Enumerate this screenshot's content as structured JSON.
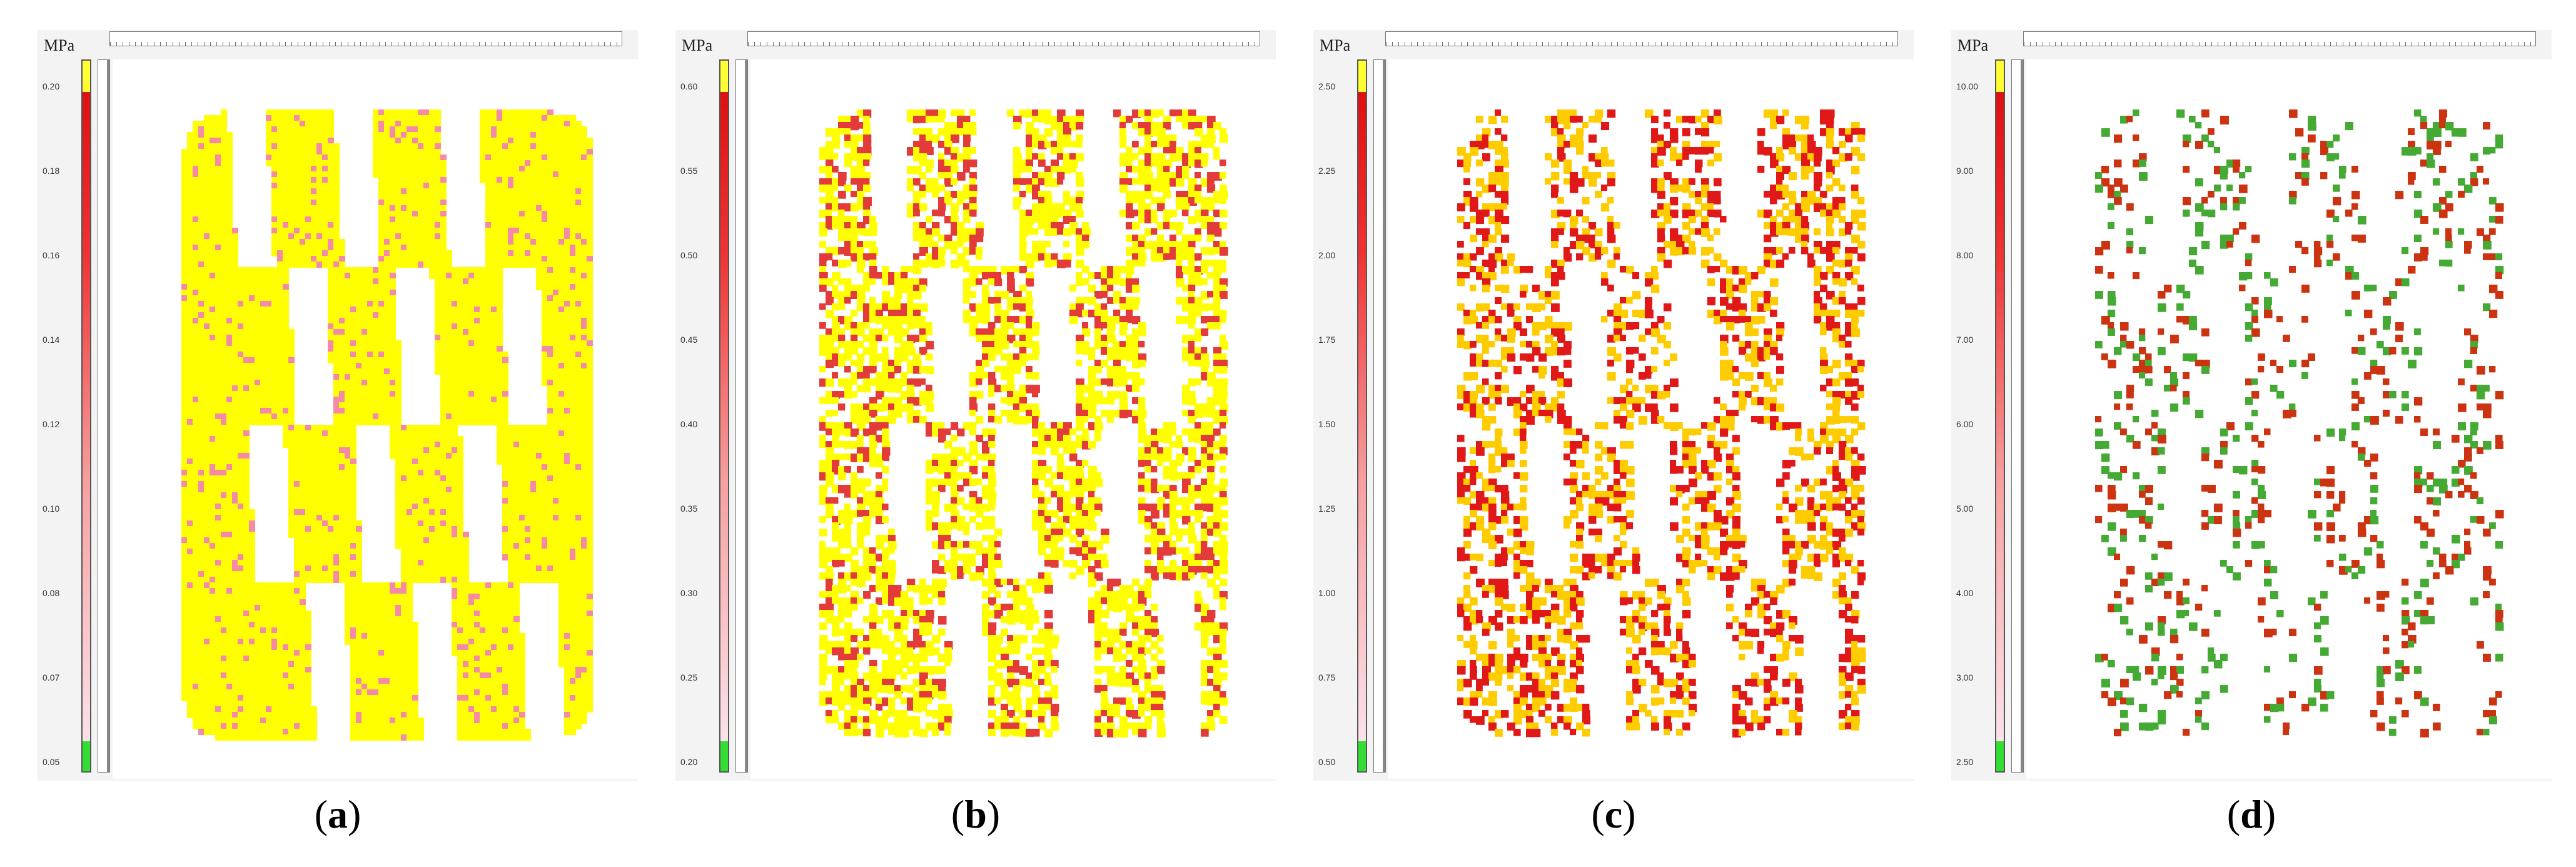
{
  "panels": [
    {
      "units": "MPa",
      "caption_open": "(",
      "caption_letter": "a",
      "caption_close": ")",
      "ticks": [
        "0.20",
        "0.18",
        "0.16",
        "0.14",
        "0.12",
        "0.10",
        "0.08",
        "0.07",
        "0.05"
      ],
      "fill": "#ffff00",
      "edge": "#f48aa8"
    },
    {
      "units": "MPa",
      "caption_open": "(",
      "caption_letter": "b",
      "caption_close": ")",
      "ticks": [
        "0.60",
        "0.55",
        "0.50",
        "0.45",
        "0.40",
        "0.35",
        "0.30",
        "0.25",
        "0.20"
      ],
      "fill": "#ffff00",
      "edge": "#e33a3a"
    },
    {
      "units": "MPa",
      "caption_open": "(",
      "caption_letter": "c",
      "caption_close": ")",
      "ticks": [
        "2.50",
        "2.25",
        "2.00",
        "1.75",
        "1.50",
        "1.25",
        "1.00",
        "0.75",
        "0.50"
      ],
      "fill": "#ffcc00",
      "edge": "#e01818"
    },
    {
      "units": "MPa",
      "caption_open": "(",
      "caption_letter": "d",
      "caption_close": ")",
      "ticks": [
        "10.00",
        "9.00",
        "8.00",
        "7.00",
        "6.00",
        "5.00",
        "4.00",
        "3.00",
        "2.50"
      ],
      "fill": "#cc3311",
      "edge": "#44aa33"
    }
  ]
}
